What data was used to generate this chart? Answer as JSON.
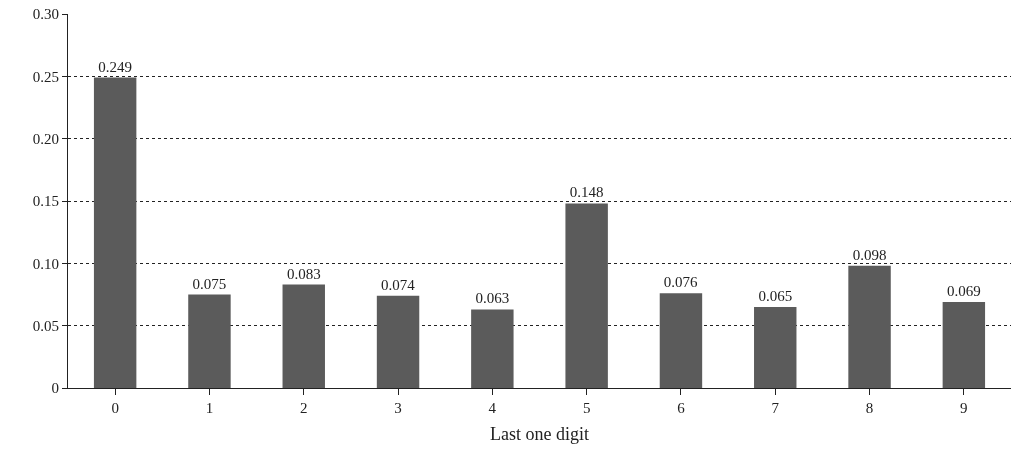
{
  "chart_data": {
    "type": "bar",
    "xlabel": "Last one digit",
    "categories": [
      "0",
      "1",
      "2",
      "3",
      "4",
      "5",
      "6",
      "7",
      "8",
      "9"
    ],
    "values": [
      0.249,
      0.075,
      0.083,
      0.074,
      0.063,
      0.148,
      0.076,
      0.065,
      0.098,
      0.069
    ],
    "color": "#5b5b5b",
    "ylim": [
      0,
      0.3
    ],
    "yticks": [
      0,
      {
        "value": 0.05,
        "label": "0.05"
      },
      {
        "value": 0.1,
        "label": "0.10"
      },
      {
        "value": 0.15,
        "label": "0.15"
      },
      {
        "value": 0.2,
        "label": "0.20"
      },
      {
        "value": 0.25,
        "label": "0.25"
      },
      {
        "value": 0.3,
        "label": "0.30"
      }
    ],
    "grid": "y",
    "data_labels": true,
    "legend": false
  }
}
